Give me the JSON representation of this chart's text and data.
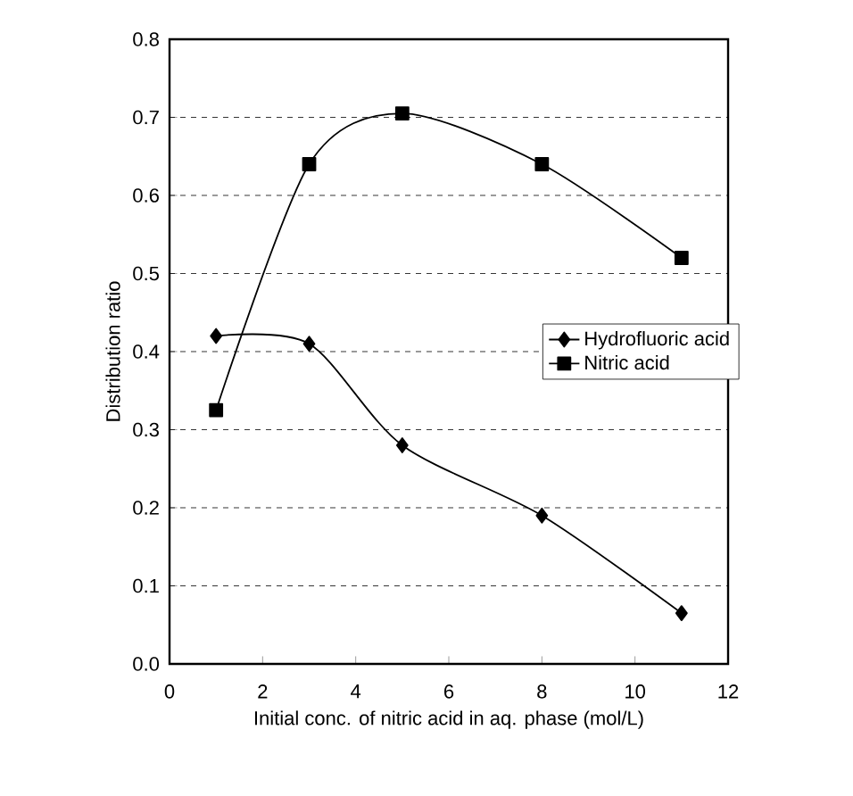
{
  "chart_data": {
    "type": "line",
    "xlabel": "Initial conc. of nitric acid in aq. phase (mol/L)",
    "ylabel": "Distribution ratio",
    "xlim": [
      0,
      12
    ],
    "ylim": [
      0,
      0.8
    ],
    "xticks": [
      0,
      2,
      4,
      6,
      8,
      10,
      12
    ],
    "yticks": [
      {
        "value": 0,
        "label": "0.0"
      },
      0.1,
      0.2,
      0.3,
      0.4,
      0.5,
      0.6,
      0.7,
      0.8
    ],
    "grid": "y",
    "legend": "right",
    "line_style": "solid",
    "series": [
      {
        "name": "Hydrofluoric acid",
        "color": "#000000",
        "marker": "diamond",
        "x": [
          1,
          3,
          5,
          8,
          11
        ],
        "values": [
          0.42,
          0.41,
          0.28,
          0.19,
          0.065
        ]
      },
      {
        "name": "Nitric acid",
        "color": "#000000",
        "marker": "square",
        "x": [
          1,
          3,
          5,
          8,
          11
        ],
        "values": [
          0.325,
          0.64,
          0.705,
          0.64,
          0.52
        ]
      }
    ]
  }
}
